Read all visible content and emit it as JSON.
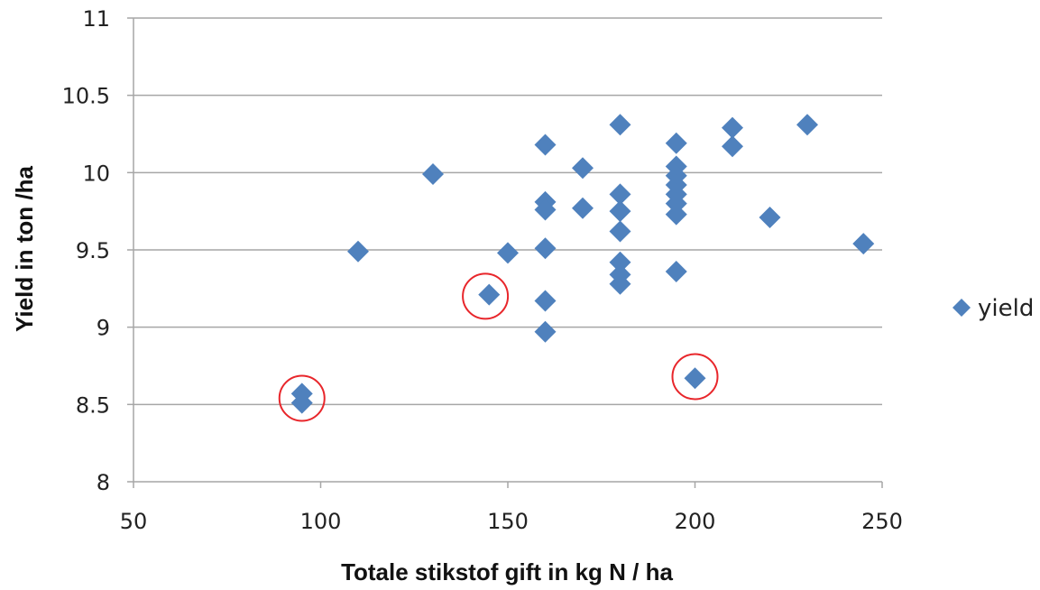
{
  "chart_data": {
    "type": "scatter",
    "xlabel": "Totale stikstof gift in kg N / ha",
    "ylabel": "Yield in ton /ha",
    "xlim": [
      50,
      250
    ],
    "ylim": [
      8,
      11
    ],
    "xticks": [
      50,
      100,
      150,
      200,
      250
    ],
    "yticks": [
      8,
      8.5,
      9,
      9.5,
      10,
      10.5,
      11
    ],
    "xtick_labels": [
      "50",
      "100",
      "150",
      "200",
      "250"
    ],
    "ytick_labels": [
      "8",
      "8.5",
      "9",
      "9.5",
      "10",
      "10.5",
      "11"
    ],
    "grid": "horizontal",
    "legend_position": "right",
    "marker": "diamond",
    "series": [
      {
        "name": "yield",
        "color": "#4f81bd",
        "points": [
          [
            95,
            8.57
          ],
          [
            95,
            8.51
          ],
          [
            110,
            9.49
          ],
          [
            130,
            9.99
          ],
          [
            145,
            9.21
          ],
          [
            150,
            9.48
          ],
          [
            160,
            10.18
          ],
          [
            160,
            9.81
          ],
          [
            160,
            9.76
          ],
          [
            160,
            9.51
          ],
          [
            160,
            9.17
          ],
          [
            160,
            8.97
          ],
          [
            170,
            10.03
          ],
          [
            170,
            9.77
          ],
          [
            180,
            10.31
          ],
          [
            180,
            9.86
          ],
          [
            180,
            9.75
          ],
          [
            180,
            9.62
          ],
          [
            180,
            9.42
          ],
          [
            180,
            9.34
          ],
          [
            180,
            9.28
          ],
          [
            195,
            10.19
          ],
          [
            195,
            10.04
          ],
          [
            195,
            9.98
          ],
          [
            195,
            9.92
          ],
          [
            195,
            9.86
          ],
          [
            195,
            9.8
          ],
          [
            195,
            9.73
          ],
          [
            195,
            9.36
          ],
          [
            200,
            8.67
          ],
          [
            210,
            10.29
          ],
          [
            210,
            10.17
          ],
          [
            220,
            9.71
          ],
          [
            230,
            10.31
          ],
          [
            245,
            9.54
          ]
        ]
      }
    ],
    "highlighted_points": [
      [
        95,
        8.54
      ],
      [
        144,
        9.2
      ],
      [
        200,
        8.68
      ]
    ],
    "highlight_color": "#e8262b"
  }
}
